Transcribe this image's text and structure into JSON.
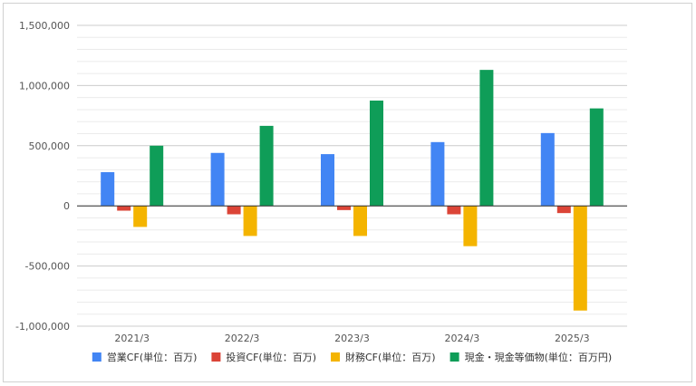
{
  "chart_data": {
    "type": "bar",
    "title": "",
    "xlabel": "",
    "ylabel": "",
    "ylim": [
      -1000000,
      1500000
    ],
    "yticks": [
      1500000,
      1000000,
      500000,
      0,
      -500000,
      -1000000
    ],
    "ytick_labels": [
      "1,500,000",
      "1,000,000",
      "500,000",
      "0",
      "-500,000",
      "-1,000,000"
    ],
    "categories": [
      "2021/3",
      "2022/3",
      "2023/3",
      "2024/3",
      "2025/3"
    ],
    "grid": true,
    "legend_position": "bottom",
    "series": [
      {
        "name": "営業CF(単位：百万)",
        "color": "#4285F4",
        "values": [
          280000,
          440000,
          430000,
          530000,
          605000
        ]
      },
      {
        "name": "投資CF(単位：百万)",
        "color": "#DB4437",
        "values": [
          -40000,
          -70000,
          -35000,
          -70000,
          -60000
        ]
      },
      {
        "name": "財務CF(単位：百万)",
        "color": "#F4B400",
        "values": [
          -175000,
          -250000,
          -250000,
          -335000,
          -870000
        ]
      },
      {
        "name": "現金・現金等価物(単位：百万円)",
        "color": "#0F9D58",
        "values": [
          500000,
          665000,
          875000,
          1130000,
          810000
        ]
      }
    ]
  }
}
